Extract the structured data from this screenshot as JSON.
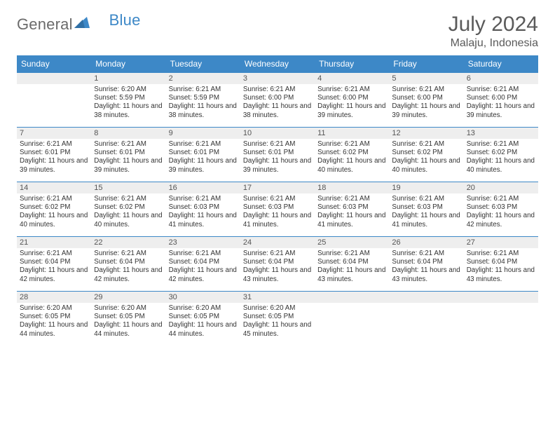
{
  "brand": {
    "word1": "General",
    "word2": "Blue",
    "logo_color": "#3d88c7",
    "text_color": "#6b6b6b"
  },
  "header": {
    "title": "July 2024",
    "location": "Malaju, Indonesia"
  },
  "colors": {
    "header_bg": "#3d88c7",
    "header_text": "#ffffff",
    "daynum_bg": "#eeeeee",
    "border": "#3d88c7",
    "body_text": "#333333"
  },
  "weekdays": [
    "Sunday",
    "Monday",
    "Tuesday",
    "Wednesday",
    "Thursday",
    "Friday",
    "Saturday"
  ],
  "weeks": [
    [
      {
        "n": "",
        "r": "",
        "s": "",
        "d": ""
      },
      {
        "n": "1",
        "r": "Sunrise: 6:20 AM",
        "s": "Sunset: 5:59 PM",
        "d": "Daylight: 11 hours and 38 minutes."
      },
      {
        "n": "2",
        "r": "Sunrise: 6:21 AM",
        "s": "Sunset: 5:59 PM",
        "d": "Daylight: 11 hours and 38 minutes."
      },
      {
        "n": "3",
        "r": "Sunrise: 6:21 AM",
        "s": "Sunset: 6:00 PM",
        "d": "Daylight: 11 hours and 38 minutes."
      },
      {
        "n": "4",
        "r": "Sunrise: 6:21 AM",
        "s": "Sunset: 6:00 PM",
        "d": "Daylight: 11 hours and 39 minutes."
      },
      {
        "n": "5",
        "r": "Sunrise: 6:21 AM",
        "s": "Sunset: 6:00 PM",
        "d": "Daylight: 11 hours and 39 minutes."
      },
      {
        "n": "6",
        "r": "Sunrise: 6:21 AM",
        "s": "Sunset: 6:00 PM",
        "d": "Daylight: 11 hours and 39 minutes."
      }
    ],
    [
      {
        "n": "7",
        "r": "Sunrise: 6:21 AM",
        "s": "Sunset: 6:01 PM",
        "d": "Daylight: 11 hours and 39 minutes."
      },
      {
        "n": "8",
        "r": "Sunrise: 6:21 AM",
        "s": "Sunset: 6:01 PM",
        "d": "Daylight: 11 hours and 39 minutes."
      },
      {
        "n": "9",
        "r": "Sunrise: 6:21 AM",
        "s": "Sunset: 6:01 PM",
        "d": "Daylight: 11 hours and 39 minutes."
      },
      {
        "n": "10",
        "r": "Sunrise: 6:21 AM",
        "s": "Sunset: 6:01 PM",
        "d": "Daylight: 11 hours and 39 minutes."
      },
      {
        "n": "11",
        "r": "Sunrise: 6:21 AM",
        "s": "Sunset: 6:02 PM",
        "d": "Daylight: 11 hours and 40 minutes."
      },
      {
        "n": "12",
        "r": "Sunrise: 6:21 AM",
        "s": "Sunset: 6:02 PM",
        "d": "Daylight: 11 hours and 40 minutes."
      },
      {
        "n": "13",
        "r": "Sunrise: 6:21 AM",
        "s": "Sunset: 6:02 PM",
        "d": "Daylight: 11 hours and 40 minutes."
      }
    ],
    [
      {
        "n": "14",
        "r": "Sunrise: 6:21 AM",
        "s": "Sunset: 6:02 PM",
        "d": "Daylight: 11 hours and 40 minutes."
      },
      {
        "n": "15",
        "r": "Sunrise: 6:21 AM",
        "s": "Sunset: 6:02 PM",
        "d": "Daylight: 11 hours and 40 minutes."
      },
      {
        "n": "16",
        "r": "Sunrise: 6:21 AM",
        "s": "Sunset: 6:03 PM",
        "d": "Daylight: 11 hours and 41 minutes."
      },
      {
        "n": "17",
        "r": "Sunrise: 6:21 AM",
        "s": "Sunset: 6:03 PM",
        "d": "Daylight: 11 hours and 41 minutes."
      },
      {
        "n": "18",
        "r": "Sunrise: 6:21 AM",
        "s": "Sunset: 6:03 PM",
        "d": "Daylight: 11 hours and 41 minutes."
      },
      {
        "n": "19",
        "r": "Sunrise: 6:21 AM",
        "s": "Sunset: 6:03 PM",
        "d": "Daylight: 11 hours and 41 minutes."
      },
      {
        "n": "20",
        "r": "Sunrise: 6:21 AM",
        "s": "Sunset: 6:03 PM",
        "d": "Daylight: 11 hours and 42 minutes."
      }
    ],
    [
      {
        "n": "21",
        "r": "Sunrise: 6:21 AM",
        "s": "Sunset: 6:04 PM",
        "d": "Daylight: 11 hours and 42 minutes."
      },
      {
        "n": "22",
        "r": "Sunrise: 6:21 AM",
        "s": "Sunset: 6:04 PM",
        "d": "Daylight: 11 hours and 42 minutes."
      },
      {
        "n": "23",
        "r": "Sunrise: 6:21 AM",
        "s": "Sunset: 6:04 PM",
        "d": "Daylight: 11 hours and 42 minutes."
      },
      {
        "n": "24",
        "r": "Sunrise: 6:21 AM",
        "s": "Sunset: 6:04 PM",
        "d": "Daylight: 11 hours and 43 minutes."
      },
      {
        "n": "25",
        "r": "Sunrise: 6:21 AM",
        "s": "Sunset: 6:04 PM",
        "d": "Daylight: 11 hours and 43 minutes."
      },
      {
        "n": "26",
        "r": "Sunrise: 6:21 AM",
        "s": "Sunset: 6:04 PM",
        "d": "Daylight: 11 hours and 43 minutes."
      },
      {
        "n": "27",
        "r": "Sunrise: 6:21 AM",
        "s": "Sunset: 6:04 PM",
        "d": "Daylight: 11 hours and 43 minutes."
      }
    ],
    [
      {
        "n": "28",
        "r": "Sunrise: 6:20 AM",
        "s": "Sunset: 6:05 PM",
        "d": "Daylight: 11 hours and 44 minutes."
      },
      {
        "n": "29",
        "r": "Sunrise: 6:20 AM",
        "s": "Sunset: 6:05 PM",
        "d": "Daylight: 11 hours and 44 minutes."
      },
      {
        "n": "30",
        "r": "Sunrise: 6:20 AM",
        "s": "Sunset: 6:05 PM",
        "d": "Daylight: 11 hours and 44 minutes."
      },
      {
        "n": "31",
        "r": "Sunrise: 6:20 AM",
        "s": "Sunset: 6:05 PM",
        "d": "Daylight: 11 hours and 45 minutes."
      },
      {
        "n": "",
        "r": "",
        "s": "",
        "d": ""
      },
      {
        "n": "",
        "r": "",
        "s": "",
        "d": ""
      },
      {
        "n": "",
        "r": "",
        "s": "",
        "d": ""
      }
    ]
  ]
}
